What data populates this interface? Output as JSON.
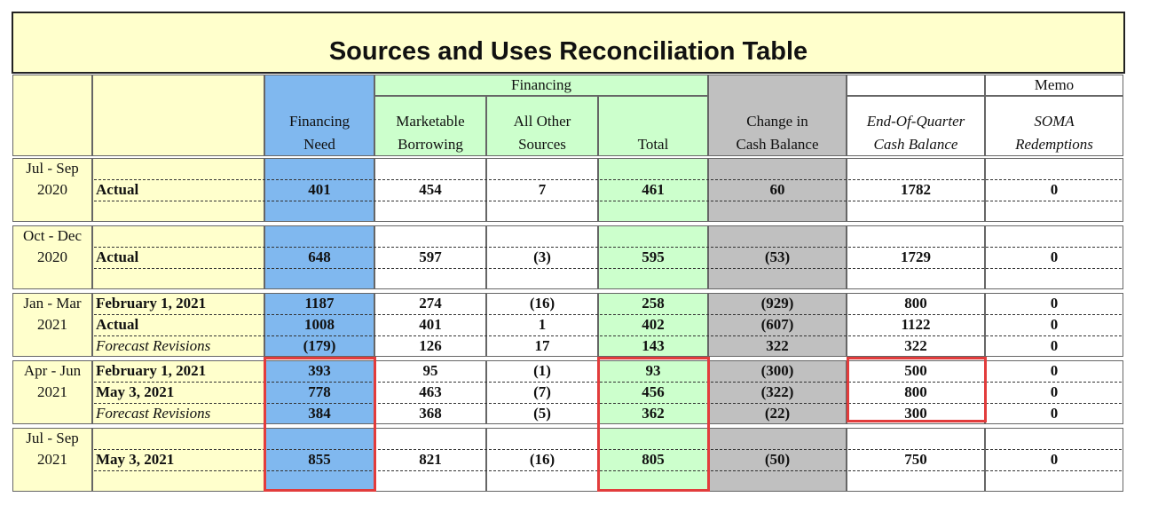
{
  "title": "Sources and Uses Reconciliation Table",
  "group_headers": {
    "financing": "Financing",
    "memo": "Memo"
  },
  "columns": [
    [
      "Financing",
      "Need"
    ],
    [
      "Marketable",
      "Borrowing"
    ],
    [
      "All Other",
      "Sources"
    ],
    [
      "Total"
    ],
    [
      "Change in",
      "Cash Balance"
    ],
    [
      "End-Of-Quarter",
      "Cash Balance"
    ],
    [
      "SOMA",
      "Redemptions"
    ]
  ],
  "periods": [
    {
      "label": [
        "Jul - Sep",
        "2020"
      ],
      "rows": [
        {
          "label": "Actual",
          "values": [
            "401",
            "454",
            "7",
            "461",
            "60",
            "1782",
            "0"
          ]
        }
      ]
    },
    {
      "label": [
        "Oct - Dec",
        "2020"
      ],
      "rows": [
        {
          "label": "Actual",
          "values": [
            "648",
            "597",
            "(3)",
            "595",
            "(53)",
            "1729",
            "0"
          ]
        }
      ]
    },
    {
      "label": [
        "Jan - Mar",
        "2021"
      ],
      "rows": [
        {
          "label": "February 1, 2021",
          "values": [
            "1187",
            "274",
            "(16)",
            "258",
            "(929)",
            "800",
            "0"
          ]
        },
        {
          "label": "Actual",
          "values": [
            "1008",
            "401",
            "1",
            "402",
            "(607)",
            "1122",
            "0"
          ]
        },
        {
          "label": "Forecast Revisions",
          "values": [
            "(179)",
            "126",
            "17",
            "143",
            "322",
            "322",
            "0"
          ]
        }
      ]
    },
    {
      "label": [
        "Apr - Jun",
        "2021"
      ],
      "rows": [
        {
          "label": "February 1, 2021",
          "values": [
            "393",
            "95",
            "(1)",
            "93",
            "(300)",
            "500",
            "0"
          ]
        },
        {
          "label": "May 3, 2021",
          "values": [
            "778",
            "463",
            "(7)",
            "456",
            "(322)",
            "800",
            "0"
          ]
        },
        {
          "label": "Forecast Revisions",
          "values": [
            "384",
            "368",
            "(5)",
            "362",
            "(22)",
            "300",
            "0"
          ]
        }
      ]
    },
    {
      "label": [
        "Jul - Sep",
        "2021"
      ],
      "rows": [
        {
          "label": "May 3, 2021",
          "values": [
            "855",
            "821",
            "(16)",
            "805",
            "(50)",
            "750",
            "0"
          ]
        }
      ]
    }
  ]
}
